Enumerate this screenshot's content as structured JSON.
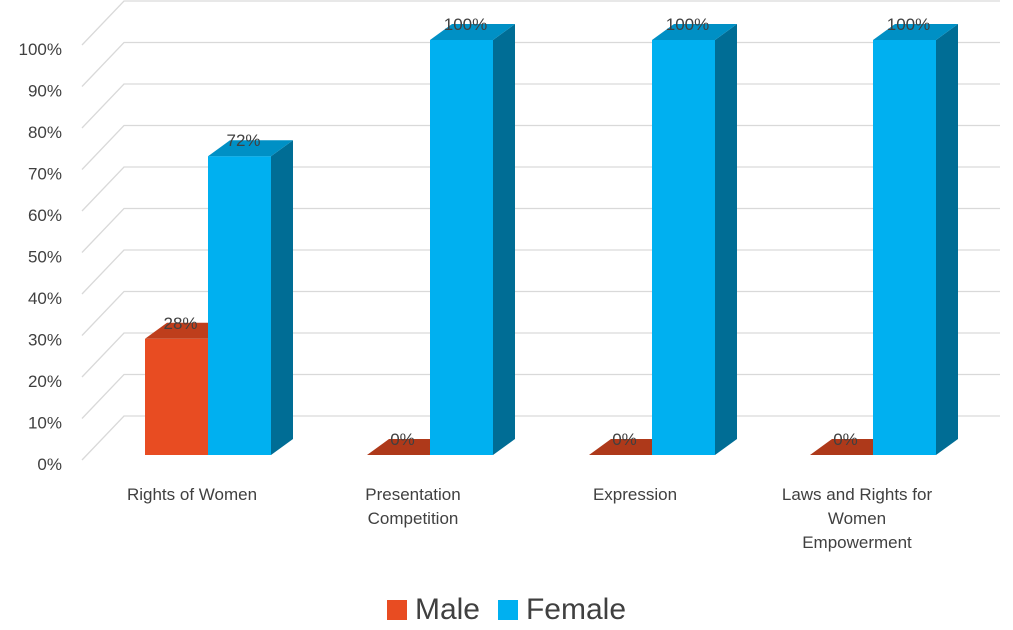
{
  "chart_data": {
    "type": "bar",
    "title": "",
    "categories": [
      "Rights of Women",
      "Presentation Competition",
      "Expression",
      "Laws and Rights for Women Empowerment"
    ],
    "category_lines": [
      [
        "Rights of Women"
      ],
      [
        "Presentation",
        "Competition"
      ],
      [
        "Expression"
      ],
      [
        "Laws and Rights for",
        "Women",
        "Empowerment"
      ]
    ],
    "series": [
      {
        "name": "Male",
        "values": [
          28,
          0,
          0,
          0
        ],
        "labels": [
          "28%",
          "0%",
          "0%",
          "0%"
        ],
        "color": "#E84C22"
      },
      {
        "name": "Female",
        "values": [
          72,
          100,
          100,
          100
        ],
        "labels": [
          "72%",
          "100%",
          "100%",
          "100%"
        ],
        "color": "#00B0F0"
      }
    ],
    "y_ticks": [
      "0%",
      "10%",
      "20%",
      "30%",
      "40%",
      "50%",
      "60%",
      "70%",
      "80%",
      "90%",
      "100%"
    ],
    "ylim": [
      0,
      100
    ],
    "grid": true,
    "legend_position": "bottom",
    "style": "3d-column"
  }
}
